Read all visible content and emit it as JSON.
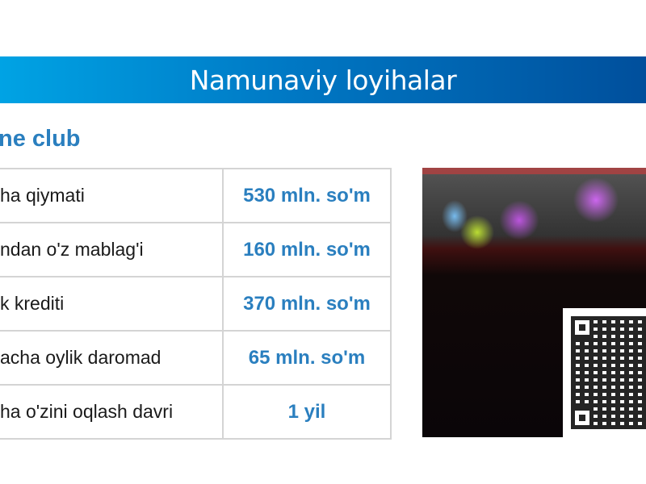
{
  "banner": {
    "title": "Namunaviy loyihalar"
  },
  "section": {
    "title": "ne club"
  },
  "table": {
    "rows": [
      {
        "label": "ha qiymati",
        "value": "530 mln. so'm"
      },
      {
        "label": "ndan o'z mablag'i",
        "value": "160 mln. so'm"
      },
      {
        "label": "k krediti",
        "value": "370 mln. so'm"
      },
      {
        "label": "acha oylik daromad",
        "value": "65 mln. so'm"
      },
      {
        "label": "ha o'zini oqlash davri",
        "value": "1 yil"
      }
    ]
  },
  "colors": {
    "accent": "#2a7fbf",
    "banner_start": "#00a3e4",
    "banner_end": "#004f9c"
  }
}
